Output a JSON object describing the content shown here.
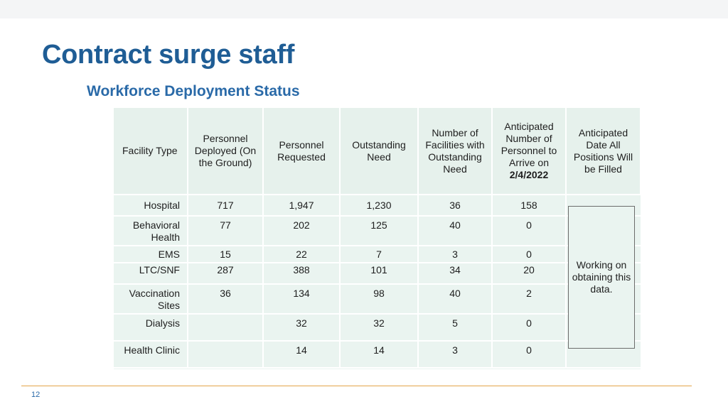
{
  "slide": {
    "title": "Contract surge staff",
    "page_number": "12"
  },
  "table": {
    "title": "Workforce Deployment Status",
    "headers": [
      "Facility Type",
      "Personnel Deployed (On the Ground)",
      "Personnel Requested",
      "Outstanding Need",
      "Number of Facilities with Outstanding Need",
      "Anticipated Number of Personnel to Arrive on",
      "Anticipated Date All Positions Will be Filled"
    ],
    "arrival_date": "2/4/2022",
    "rows": [
      {
        "facility": "Hospital",
        "deployed": "717",
        "requested": "1,947",
        "outstanding": "1,230",
        "facilities": "36",
        "arriving": "158"
      },
      {
        "facility": "Behavioral Health",
        "deployed": "77",
        "requested": "202",
        "outstanding": "125",
        "facilities": "40",
        "arriving": "0"
      },
      {
        "facility": "EMS",
        "deployed": "15",
        "requested": "22",
        "outstanding": "7",
        "facilities": "3",
        "arriving": "0"
      },
      {
        "facility": "LTC/SNF",
        "deployed": "287",
        "requested": "388",
        "outstanding": "101",
        "facilities": "34",
        "arriving": "20"
      },
      {
        "facility": "Vaccination Sites",
        "deployed": "36",
        "requested": "134",
        "outstanding": "98",
        "facilities": "40",
        "arriving": "2"
      },
      {
        "facility": "Dialysis",
        "deployed": "",
        "requested": "32",
        "outstanding": "32",
        "facilities": "5",
        "arriving": "0"
      },
      {
        "facility": "Health Clinic",
        "deployed": "",
        "requested": "14",
        "outstanding": "14",
        "facilities": "3",
        "arriving": "0"
      }
    ],
    "date_note": "Working on obtaining this data."
  },
  "colors": {
    "title": "#1f5d95",
    "table_title": "#2a6aa8",
    "table_bg": "#eaf4f0",
    "footer_line": "#e3a44a"
  }
}
